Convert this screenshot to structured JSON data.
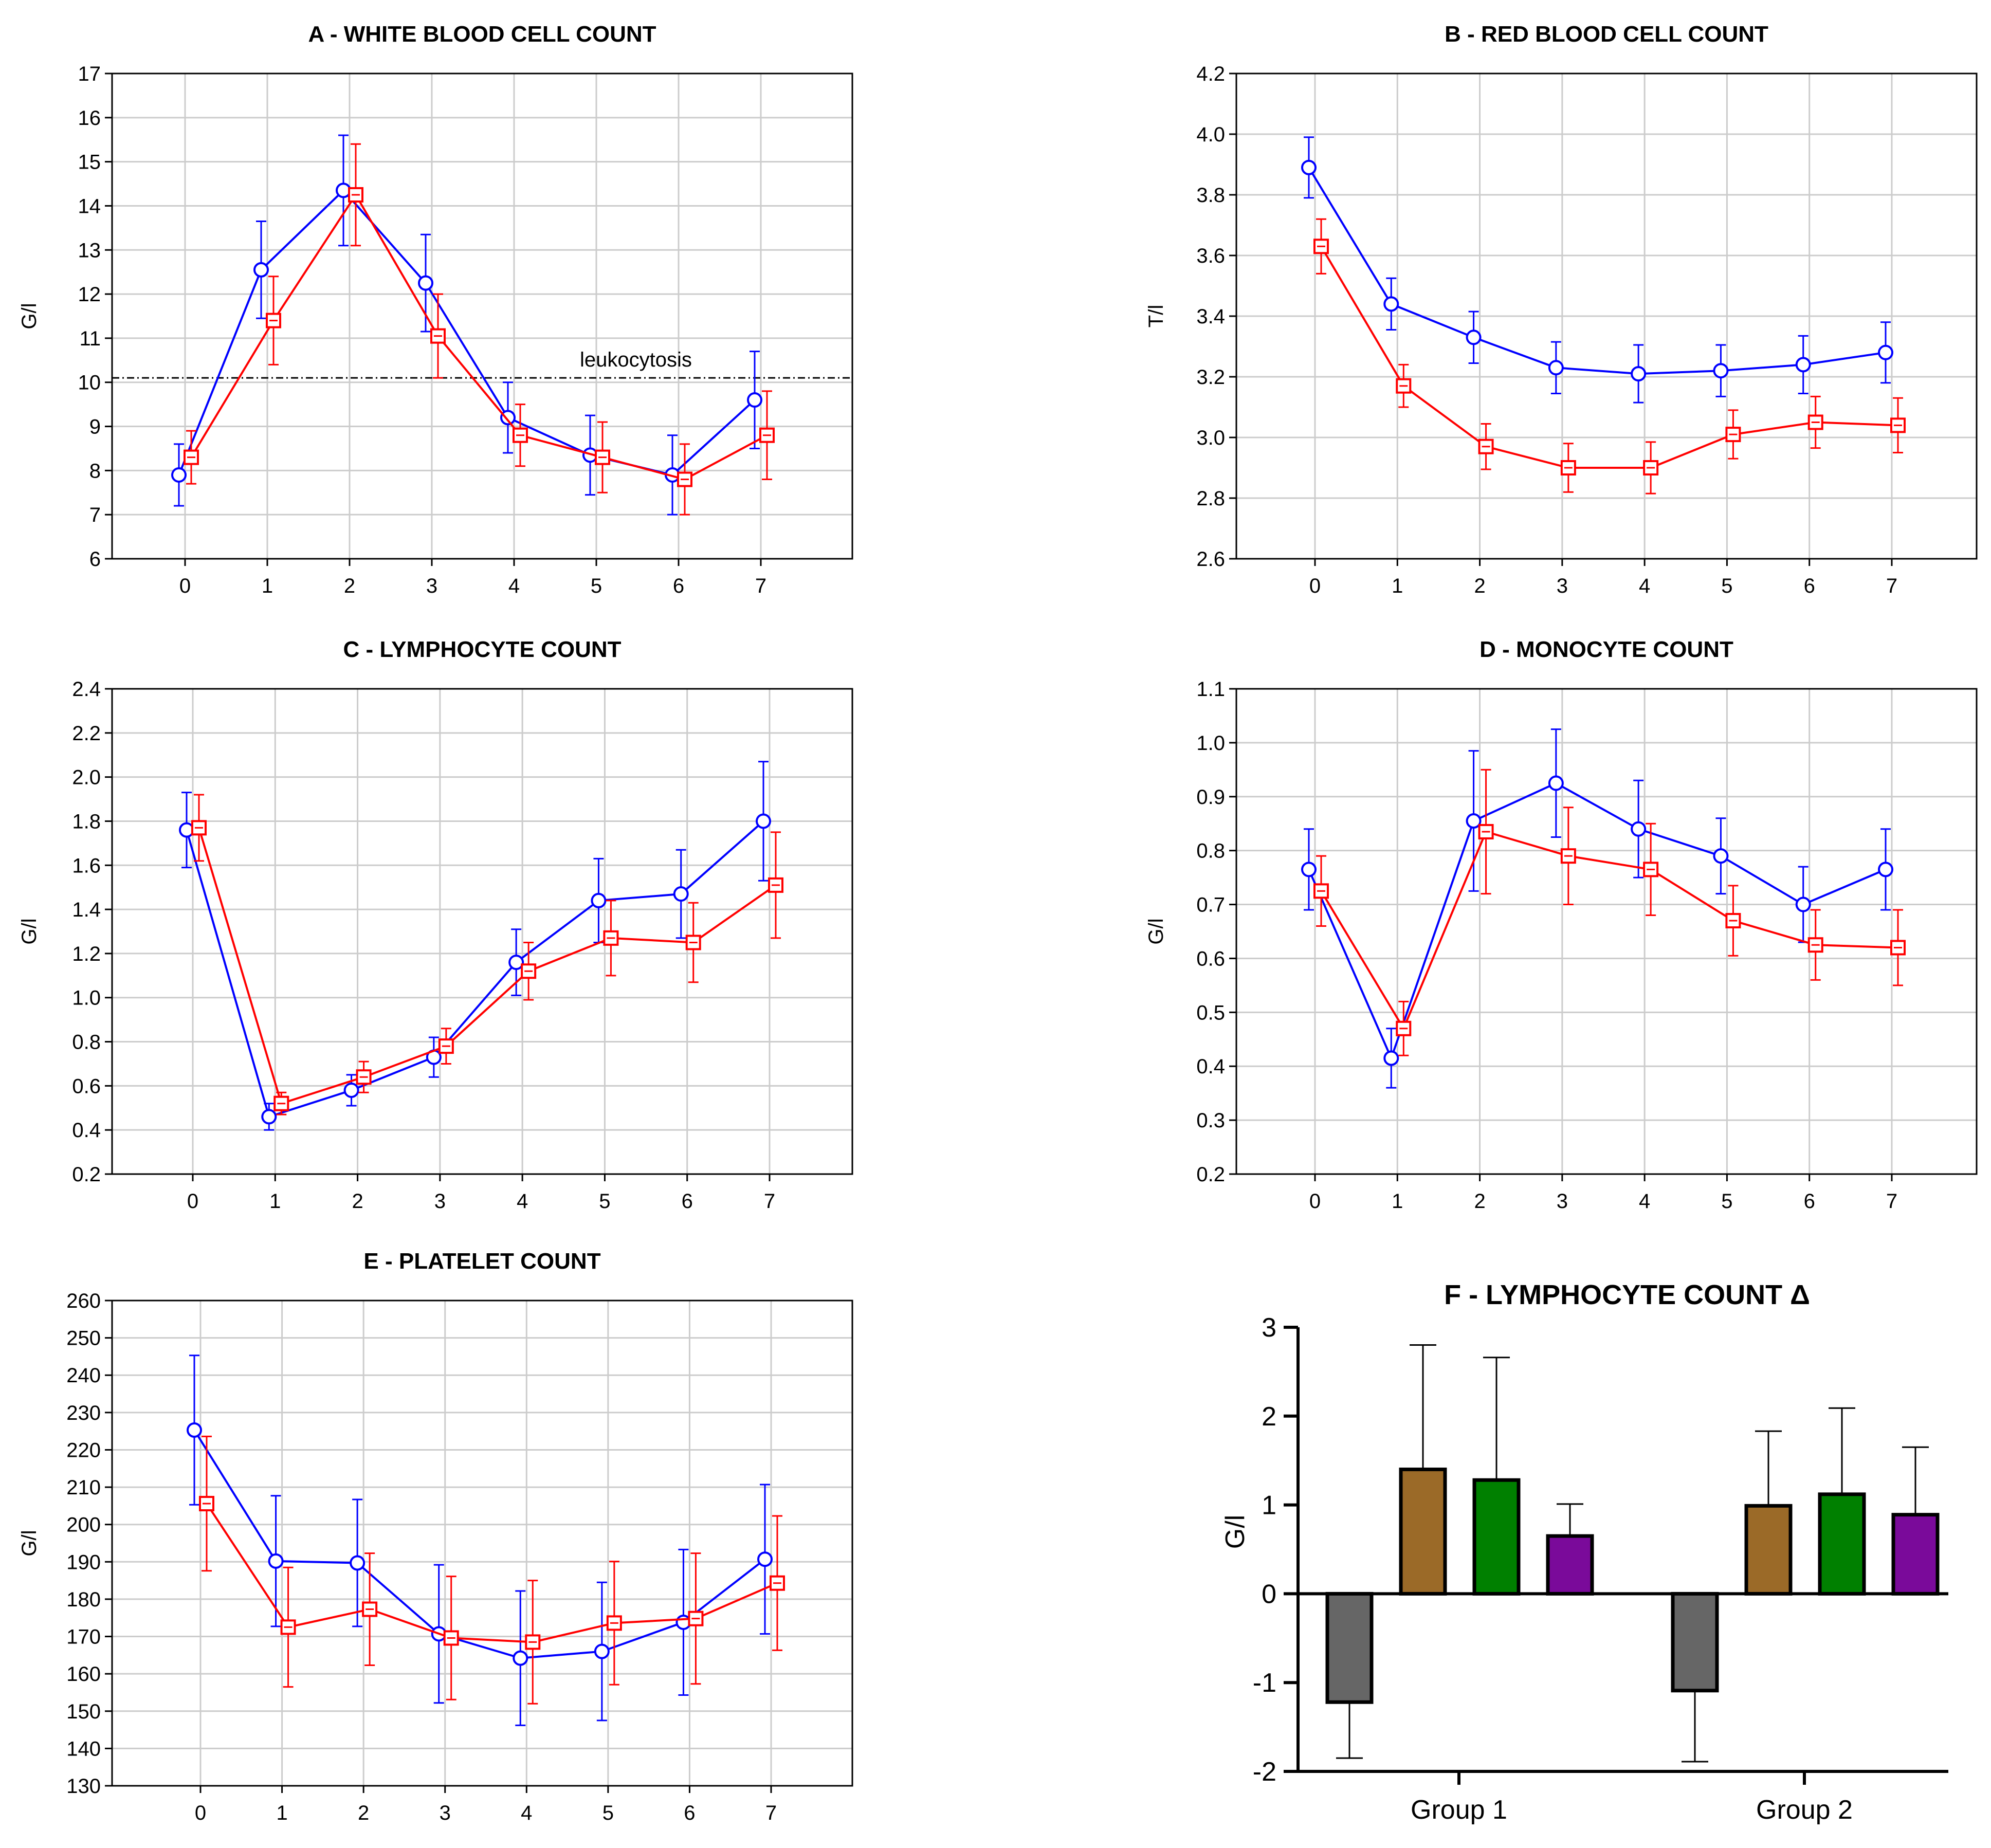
{
  "chart_data": [
    {
      "panel": "A",
      "type": "line",
      "title": "A - WHITE BLOOD CELL COUNT",
      "ylabel": "G/l",
      "xlabel": "",
      "categories": [
        "0",
        "1",
        "2",
        "3",
        "4",
        "5",
        "6",
        "7"
      ],
      "ylim": [
        6,
        17
      ],
      "yticks": [
        6,
        7,
        8,
        9,
        10,
        11,
        12,
        13,
        14,
        15,
        16,
        17
      ],
      "grid": true,
      "annotation": "leukocytosis",
      "reference_line": 10.1,
      "series": [
        {
          "color": "#0000ff",
          "marker": "circle",
          "values": [
            7.9,
            12.55,
            14.35,
            12.25,
            9.2,
            8.35,
            7.9,
            9.6
          ],
          "err": [
            0.7,
            1.1,
            1.25,
            1.1,
            0.8,
            0.9,
            0.9,
            1.1
          ]
        },
        {
          "color": "#ff0000",
          "marker": "square",
          "values": [
            8.3,
            11.4,
            14.25,
            11.05,
            8.8,
            8.3,
            7.8,
            8.8
          ],
          "err": [
            0.6,
            1.0,
            1.15,
            0.95,
            0.7,
            0.8,
            0.8,
            1.0
          ]
        }
      ]
    },
    {
      "panel": "B",
      "type": "line",
      "title": "B - RED BLOOD CELL COUNT",
      "ylabel": "T/l",
      "xlabel": "",
      "categories": [
        "0",
        "1",
        "2",
        "3",
        "4",
        "5",
        "6",
        "7"
      ],
      "ylim": [
        2.6,
        4.2
      ],
      "yticks": [
        "2.6",
        "2.8",
        "3.0",
        "3.2",
        "3.4",
        "3.6",
        "3.8",
        "4.0",
        "4.2"
      ],
      "grid": true,
      "series": [
        {
          "color": "#0000ff",
          "marker": "circle",
          "values": [
            3.89,
            3.44,
            3.33,
            3.23,
            3.21,
            3.22,
            3.24,
            3.28
          ],
          "err": [
            0.1,
            0.085,
            0.085,
            0.085,
            0.095,
            0.085,
            0.095,
            0.1
          ]
        },
        {
          "color": "#ff0000",
          "marker": "square",
          "values": [
            3.63,
            3.17,
            2.97,
            2.9,
            2.9,
            3.01,
            3.05,
            3.04
          ],
          "err": [
            0.09,
            0.07,
            0.075,
            0.08,
            0.085,
            0.08,
            0.085,
            0.09
          ]
        }
      ]
    },
    {
      "panel": "C",
      "type": "line",
      "title": "C - LYMPHOCYTE COUNT",
      "ylabel": "G/l",
      "xlabel": "",
      "categories": [
        "0",
        "1",
        "2",
        "3",
        "4",
        "5",
        "6",
        "7"
      ],
      "ylim": [
        0.2,
        2.4
      ],
      "yticks": [
        "0.2",
        "0.4",
        "0.6",
        "0.8",
        "1.0",
        "1.2",
        "1.4",
        "1.6",
        "1.8",
        "2.0",
        "2.2",
        "2.4"
      ],
      "grid": true,
      "series": [
        {
          "color": "#0000ff",
          "marker": "circle",
          "values": [
            1.76,
            0.46,
            0.58,
            0.73,
            1.16,
            1.44,
            1.47,
            1.8
          ],
          "err": [
            0.17,
            0.06,
            0.07,
            0.09,
            0.15,
            0.19,
            0.2,
            0.27
          ]
        },
        {
          "color": "#ff0000",
          "marker": "square",
          "values": [
            1.77,
            0.52,
            0.64,
            0.78,
            1.12,
            1.27,
            1.25,
            1.51
          ],
          "err": [
            0.15,
            0.05,
            0.07,
            0.08,
            0.13,
            0.17,
            0.18,
            0.24
          ]
        }
      ]
    },
    {
      "panel": "D",
      "type": "line",
      "title": "D - MONOCYTE COUNT",
      "ylabel": "G/l",
      "xlabel": "",
      "categories": [
        "0",
        "1",
        "2",
        "3",
        "4",
        "5",
        "6",
        "7"
      ],
      "ylim": [
        0.2,
        1.1
      ],
      "yticks": [
        "0.2",
        "0.3",
        "0.4",
        "0.5",
        "0.6",
        "0.7",
        "0.8",
        "0.9",
        "1.0",
        "1.1"
      ],
      "grid": true,
      "series": [
        {
          "color": "#0000ff",
          "marker": "circle",
          "values": [
            0.765,
            0.415,
            0.855,
            0.925,
            0.84,
            0.79,
            0.7,
            0.765
          ],
          "err": [
            0.075,
            0.055,
            0.13,
            0.1,
            0.09,
            0.07,
            0.07,
            0.075
          ]
        },
        {
          "color": "#ff0000",
          "marker": "square",
          "values": [
            0.725,
            0.47,
            0.835,
            0.79,
            0.765,
            0.67,
            0.625,
            0.62
          ],
          "err": [
            0.065,
            0.05,
            0.115,
            0.09,
            0.085,
            0.065,
            0.065,
            0.07
          ]
        }
      ]
    },
    {
      "panel": "E",
      "type": "line",
      "title": "E - PLATELET COUNT",
      "ylabel": "G/l",
      "xlabel": "",
      "categories": [
        "0",
        "1",
        "2",
        "3",
        "4",
        "5",
        "6",
        "7"
      ],
      "ylim": [
        130,
        260
      ],
      "yticks": [
        130,
        140,
        150,
        160,
        170,
        180,
        190,
        200,
        210,
        220,
        230,
        240,
        250,
        260
      ],
      "grid": true,
      "series": [
        {
          "color": "#0000ff",
          "marker": "circle",
          "values": [
            225.3,
            190.2,
            189.7,
            170.7,
            164.2,
            166.0,
            173.8,
            190.7
          ],
          "err": [
            20,
            17.5,
            17,
            18.5,
            18,
            18.5,
            19.5,
            20
          ]
        },
        {
          "color": "#ff0000",
          "marker": "square",
          "values": [
            205.6,
            172.5,
            177.3,
            169.6,
            168.5,
            173.6,
            174.8,
            184.3
          ],
          "err": [
            18,
            16,
            15,
            16.5,
            16.5,
            16.5,
            17.5,
            18
          ]
        }
      ]
    },
    {
      "panel": "F",
      "type": "bar",
      "title": "F - LYMPHOCYTE COUNT Δ",
      "ylabel": "G/l",
      "xlabel": "",
      "categories": [
        "Group 1",
        "Group 2"
      ],
      "ylim": [
        -2,
        3
      ],
      "yticks": [
        "-2",
        "-1",
        "0",
        "1",
        "2",
        "3"
      ],
      "grid": false,
      "bar_colors": [
        "#666666",
        "#9b6a28",
        "#008000",
        "#7a0a9a"
      ],
      "groups": [
        {
          "values": [
            -1.22,
            1.4,
            1.28,
            0.65
          ],
          "err": [
            0.63,
            1.4,
            1.38,
            0.36
          ]
        },
        {
          "values": [
            -1.09,
            0.99,
            1.12,
            0.89
          ],
          "err": [
            0.8,
            0.84,
            0.97,
            0.76
          ]
        }
      ]
    }
  ]
}
